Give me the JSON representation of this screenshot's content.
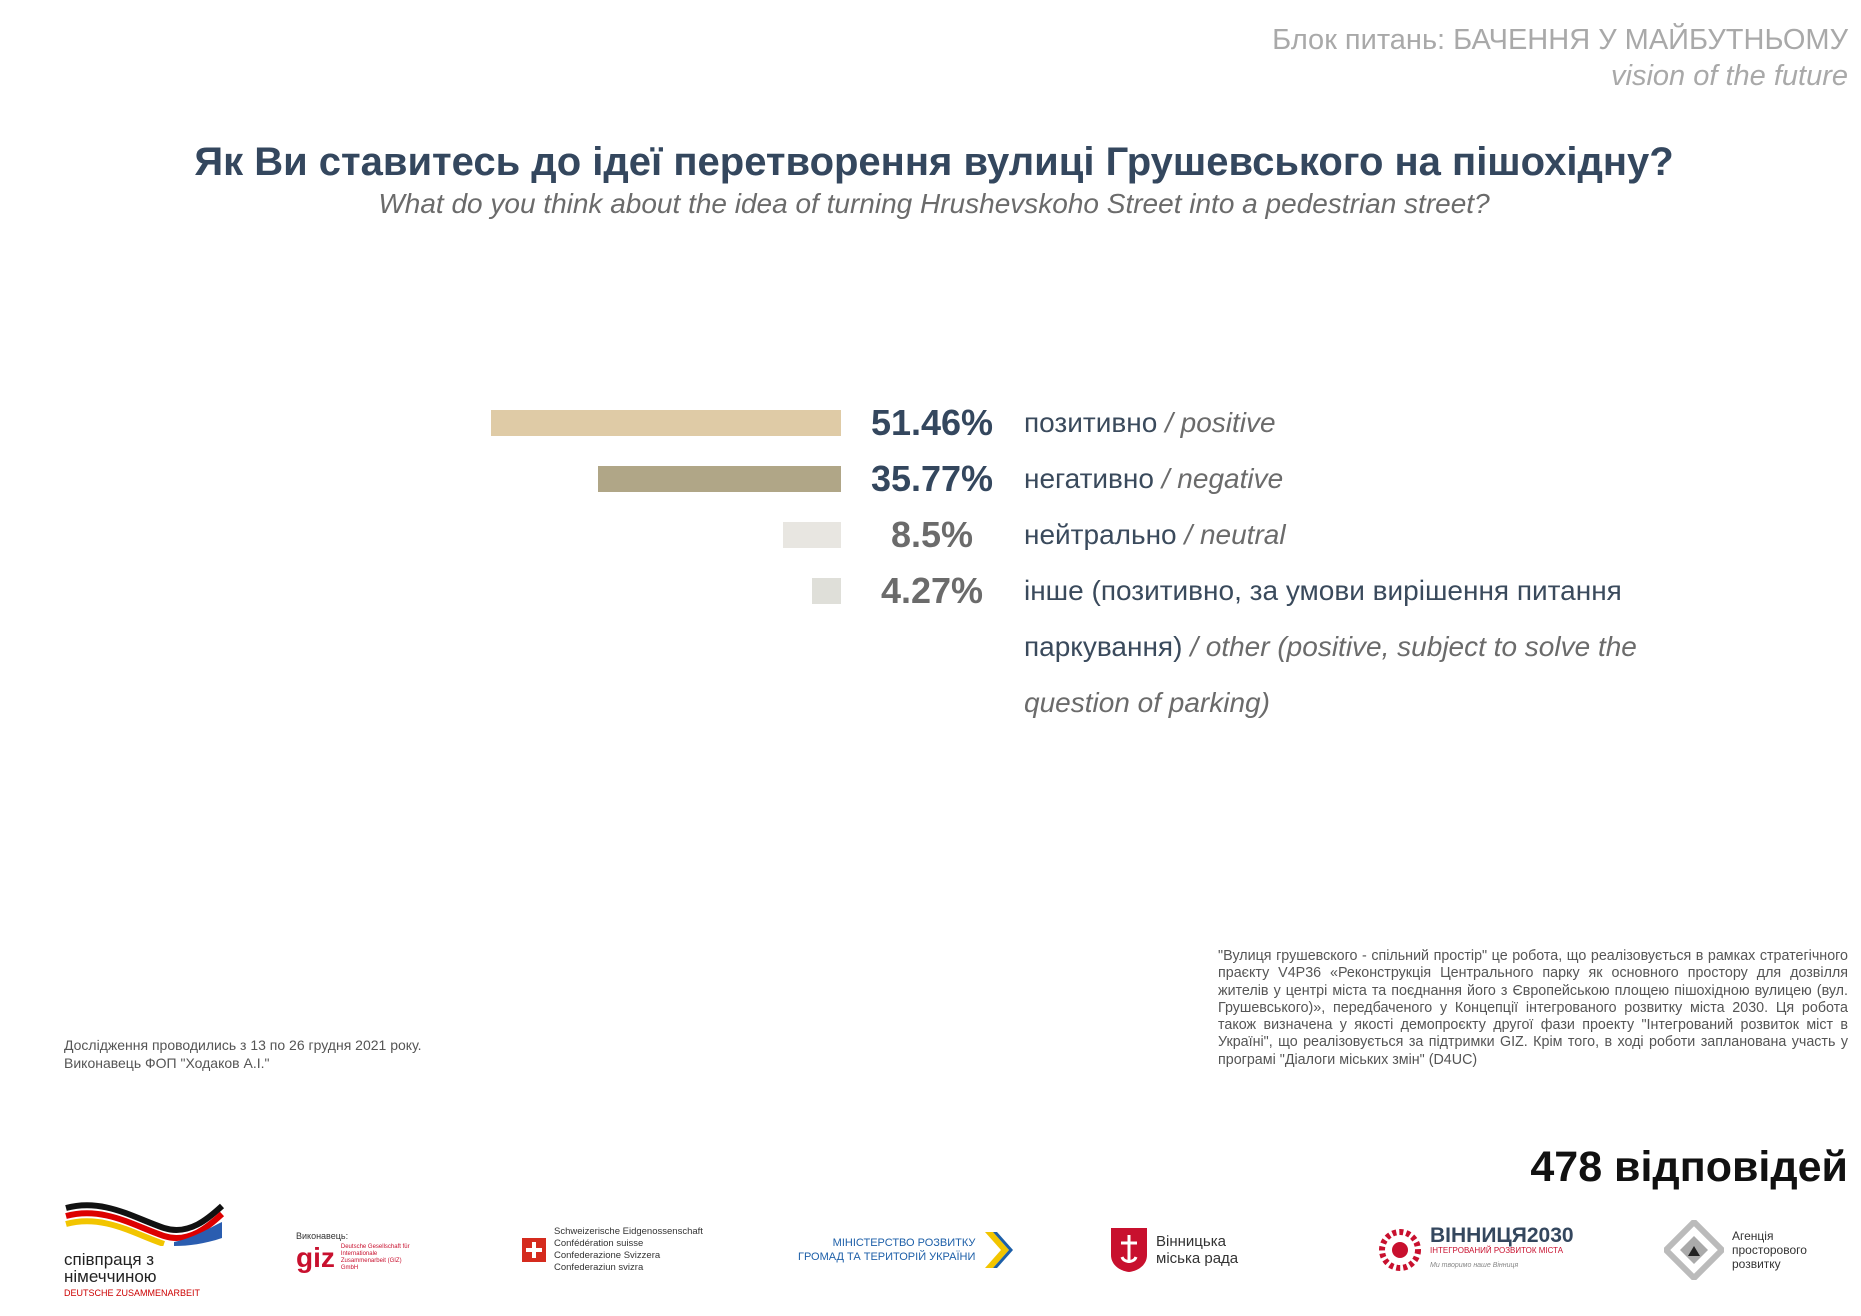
{
  "header": {
    "kicker": "Блок питань: БАЧЕННЯ У МАЙБУТНЬОМУ",
    "kicker_en": "vision of the future"
  },
  "chart_data": {
    "type": "bar",
    "orientation": "horizontal",
    "title": "Як Ви ставитесь до ідеї перетворення вулиці Грушевського на пішохідну?",
    "subtitle": "What do you think about the idea of turning Hrushevskoho Street into a pedestrian street?",
    "categories": [
      "позитивно",
      "негативно",
      "нейтрально",
      "інше (позитивно, за умови вирішення питання паркування)"
    ],
    "categories_en": [
      "/ positive",
      "/ negative",
      "/ neutral",
      "/ other (positive, subject to solve the question of parking)"
    ],
    "values": [
      51.46,
      35.77,
      8.5,
      4.27
    ],
    "value_labels": [
      "51.46%",
      "35.77%",
      "8.5%",
      "4.27%"
    ],
    "colors": [
      "#dfcba6",
      "#b0a687",
      "#e8e6e1",
      "#dfdfd9"
    ],
    "label_colors": [
      "#34475e",
      "#34475e",
      "#6b6b6b",
      "#6b6b6b"
    ]
  },
  "footer": {
    "method": [
      "Дослідження проводились з 13 по 26 грудня 2021 року.",
      "Виконавець ФОП \"Ходаков А.І.\""
    ],
    "note": "\"Вулиця грушевского - спільний простір\" це робота, що реалізовується в рамках стратегічного праєкту V4P36 «Реконструкція Центрального парку як основного простору для дозвілля жителів у центрі міста та поєднання його з Європейською площею пішохідною вулицею (вул. Грушевського)», передбаченого у Концепції інтегрованого розвитку міста 2030. Ця робота також визначена у якості демопроєкту другої фази проекту \"Інтегрований розвиток міст в Україні\", що реалізовується за підтримки GIZ. Крім того, в ході роботи запланована участь у програмі \"Діалоги міських змін\" (D4UC)",
    "responses": "478 відповідей"
  },
  "logos": [
    {
      "lines": [
        "співпраця з",
        "німеччиною",
        "DEUTSCHE ZUSAMMENARBEIT"
      ]
    },
    {
      "lines": [
        "Виконавець:",
        "giz",
        "Deutsche Gesellschaft für Internationale Zusammenarbeit (GIZ) GmbH"
      ]
    },
    {
      "lines": [
        "Schweizerische Eidgenossenschaft",
        "Confédération suisse",
        "Confederazione Svizzera",
        "Confederaziun svizra"
      ]
    },
    {
      "lines": [
        "МІНІСТЕРСТВО РОЗВИТКУ",
        "ГРОМАД ТА ТЕРИТОРІЙ УКРАЇНИ"
      ]
    },
    {
      "lines": [
        "Вінницька",
        "міська рада"
      ]
    },
    {
      "lines": [
        "ВІННИЦЯ2030",
        "ІНТЕГРОВАНИЙ РОЗВИТОК МІСТА",
        "Ми творимо наше Вінниця"
      ]
    },
    {
      "lines": [
        "Агенція",
        "просторового",
        "розвитку"
      ]
    }
  ]
}
